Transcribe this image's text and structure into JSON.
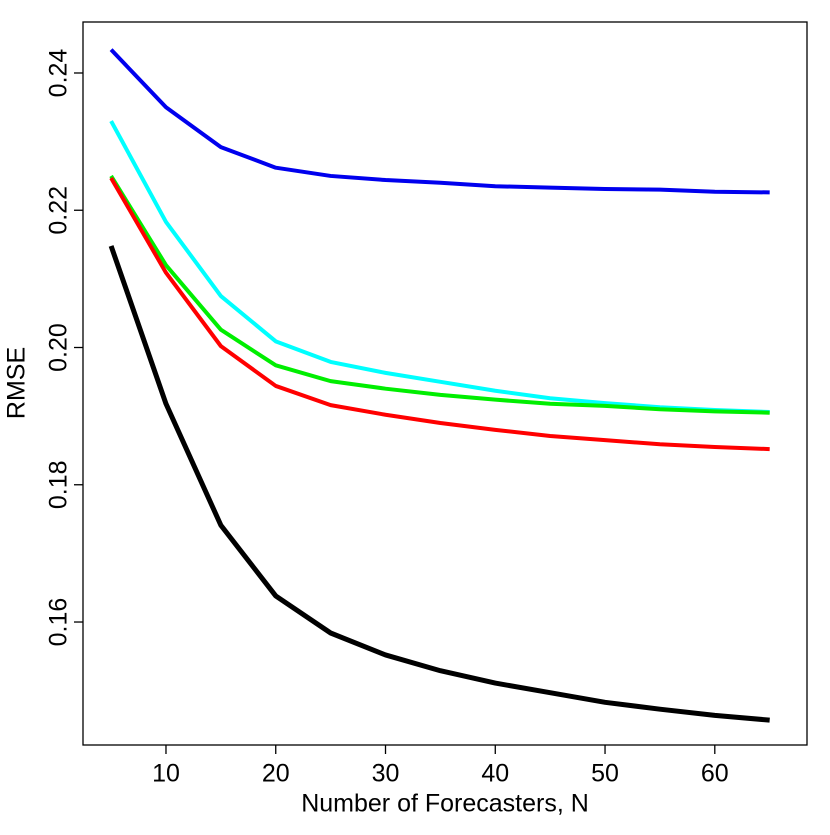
{
  "chart_data": {
    "type": "line",
    "x_label": "Number of Forecasters, N",
    "y_label": "RMSE",
    "x": [
      5,
      10,
      15,
      20,
      25,
      30,
      35,
      40,
      45,
      50,
      55,
      60,
      65
    ],
    "series": [
      {
        "color": "#0000ee",
        "values": [
          0.2434,
          0.235,
          0.2292,
          0.2262,
          0.225,
          0.2244,
          0.224,
          0.2235,
          0.2233,
          0.2231,
          0.223,
          0.2227,
          0.2226
        ]
      },
      {
        "color": "#00ffff",
        "values": [
          0.233,
          0.2183,
          0.2075,
          0.2009,
          0.1979,
          0.1963,
          0.195,
          0.1937,
          0.1926,
          0.1919,
          0.1913,
          0.1909,
          0.1906
        ]
      },
      {
        "color": "#00ee00",
        "values": [
          0.225,
          0.212,
          0.2026,
          0.1974,
          0.1951,
          0.194,
          0.1931,
          0.1924,
          0.1918,
          0.1915,
          0.191,
          0.1907,
          0.1905
        ]
      },
      {
        "color": "#ff0000",
        "values": [
          0.2247,
          0.2109,
          0.2002,
          0.1944,
          0.1916,
          0.1902,
          0.189,
          0.188,
          0.1871,
          0.1865,
          0.1859,
          0.1855,
          0.1852
        ]
      },
      {
        "color": "#000000",
        "values": [
          0.2148,
          0.1918,
          0.1741,
          0.1638,
          0.1584,
          0.1552,
          0.1529,
          0.1511,
          0.1497,
          0.1483,
          0.1473,
          0.1464,
          0.1457
        ]
      }
    ],
    "xlim": [
      2.44,
      68.4
    ],
    "xticks": [
      10,
      20,
      30,
      40,
      50,
      60
    ],
    "ylim": [
      0.14208,
      0.24743
    ],
    "yticks": [
      0.16,
      0.18,
      {
        "value": 0.2,
        "label": "0.20"
      },
      0.22,
      0.24
    ]
  }
}
